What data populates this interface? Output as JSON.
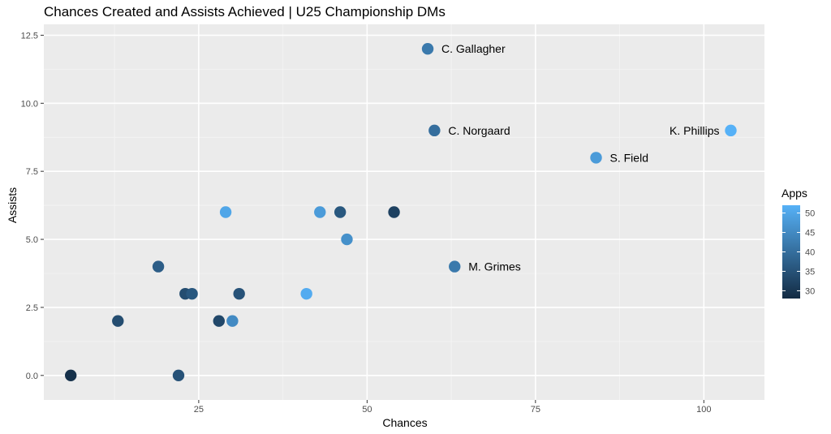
{
  "chart_data": {
    "type": "scatter",
    "title": "Chances Created and Assists Achieved | U25 Championship DMs",
    "xlabel": "Chances",
    "ylabel": "Assists",
    "xlim": [
      2,
      109
    ],
    "ylim": [
      -0.9,
      12.9
    ],
    "x_ticks": [
      25,
      50,
      75,
      100
    ],
    "x_tick_labels": [
      "25",
      "50",
      "75",
      "100"
    ],
    "y_ticks": [
      0,
      2.5,
      5,
      7.5,
      10,
      12.5
    ],
    "y_tick_labels": [
      "0.0",
      "2.5",
      "5.0",
      "7.5",
      "10.0",
      "12.5"
    ],
    "grid": true,
    "color_scale": {
      "title": "Apps",
      "min": 28,
      "max": 52,
      "low_color": "#132B43",
      "high_color": "#56B1F7",
      "ticks": [
        30,
        35,
        40,
        45,
        50
      ],
      "tick_labels": [
        "30",
        "35",
        "40",
        "45",
        "50"
      ],
      "position": "right"
    },
    "points": [
      {
        "x": 59,
        "y": 12,
        "apps": 42,
        "label": "C. Gallagher"
      },
      {
        "x": 60,
        "y": 9,
        "apps": 40,
        "label": "C. Norgaard"
      },
      {
        "x": 104,
        "y": 9,
        "apps": 52,
        "label": "K. Phillips"
      },
      {
        "x": 84,
        "y": 8,
        "apps": 48,
        "label": "S. Field"
      },
      {
        "x": 63,
        "y": 4,
        "apps": 42,
        "label": "M. Grimes"
      },
      {
        "x": 29,
        "y": 6,
        "apps": 50,
        "label": ""
      },
      {
        "x": 43,
        "y": 6,
        "apps": 48,
        "label": ""
      },
      {
        "x": 46,
        "y": 6,
        "apps": 36,
        "label": ""
      },
      {
        "x": 54,
        "y": 6,
        "apps": 32,
        "label": ""
      },
      {
        "x": 47,
        "y": 5,
        "apps": 46,
        "label": ""
      },
      {
        "x": 19,
        "y": 4,
        "apps": 37,
        "label": ""
      },
      {
        "x": 23,
        "y": 3,
        "apps": 34,
        "label": ""
      },
      {
        "x": 24,
        "y": 3,
        "apps": 36,
        "label": ""
      },
      {
        "x": 31,
        "y": 3,
        "apps": 35,
        "label": ""
      },
      {
        "x": 41,
        "y": 3,
        "apps": 51,
        "label": ""
      },
      {
        "x": 13,
        "y": 2,
        "apps": 34,
        "label": ""
      },
      {
        "x": 28,
        "y": 2,
        "apps": 33,
        "label": ""
      },
      {
        "x": 30,
        "y": 2,
        "apps": 45,
        "label": ""
      },
      {
        "x": 6,
        "y": 0,
        "apps": 29,
        "label": ""
      },
      {
        "x": 22,
        "y": 0,
        "apps": 35,
        "label": ""
      }
    ]
  }
}
